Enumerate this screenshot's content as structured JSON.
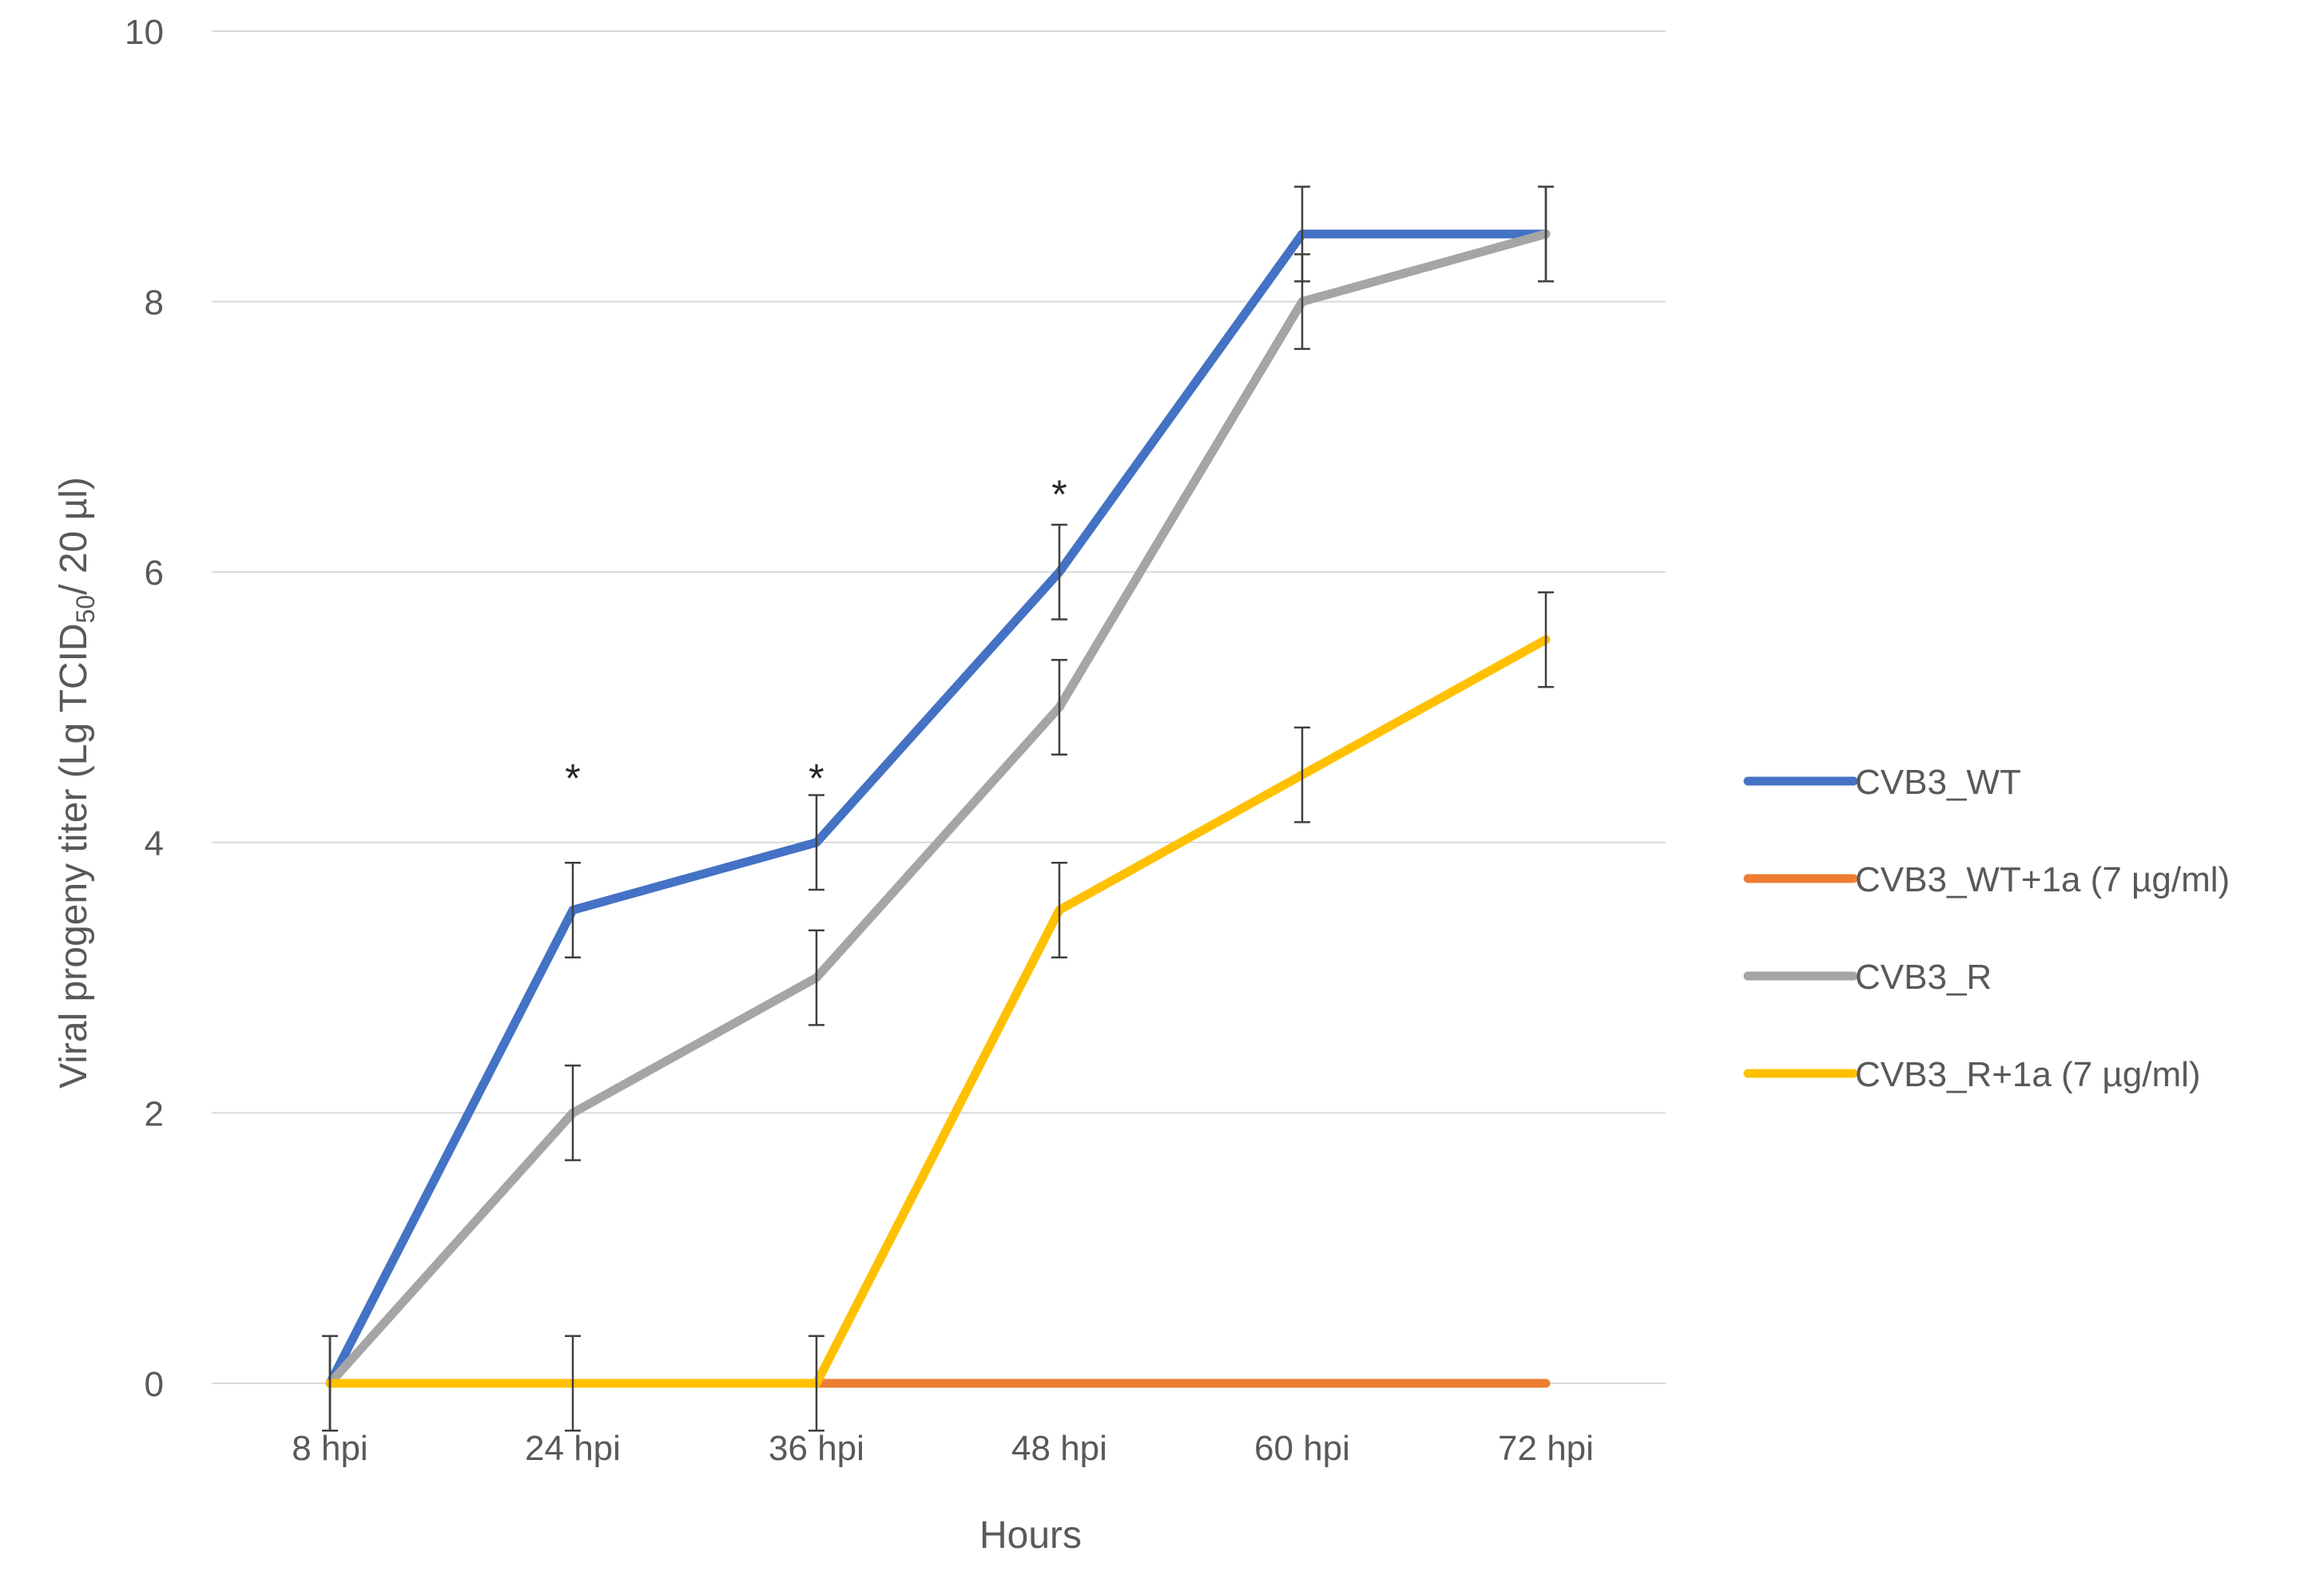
{
  "chart_data": {
    "type": "line",
    "categories": [
      "8 hpi",
      "24 hpi",
      "36 hpi",
      "48 hpi",
      "60 hpi",
      "72 hpi"
    ],
    "xlabel": "Hours",
    "ylabel_parts": {
      "before": "Viral progeny titer (Lg TCID",
      "subscript": "50",
      "after": "/ 20 µl)"
    },
    "ylim": [
      0,
      10
    ],
    "yticks": [
      0,
      2,
      4,
      6,
      8,
      10
    ],
    "grid": true,
    "legend_position": "right",
    "series": [
      {
        "name": "CVB3_WT",
        "color": "#4472C4",
        "values": [
          0,
          3.5,
          4,
          6,
          8.5,
          8.5
        ],
        "errors": [
          0.35,
          0.35,
          0.35,
          0.35,
          0.35,
          0.35
        ]
      },
      {
        "name": "CVB3_WT+1a (7 µg/ml)",
        "color": "#ED7D31",
        "values": [
          0,
          0,
          0,
          0,
          0,
          0
        ],
        "errors": [
          0,
          0,
          0,
          0,
          0,
          0
        ]
      },
      {
        "name": "CVB3_R",
        "color": "#A5A5A5",
        "values": [
          0,
          2,
          3,
          5,
          8,
          8.5
        ],
        "errors": [
          0.35,
          0.35,
          0.35,
          0.35,
          0.35,
          0.35
        ]
      },
      {
        "name": "CVB3_R+1a  (7 µg/ml)",
        "color": "#FFC000",
        "values": [
          0,
          0,
          0,
          3.5,
          4.5,
          5.5
        ],
        "errors": [
          0.35,
          0.35,
          0.35,
          0.35,
          0.35,
          0.35
        ]
      }
    ],
    "annotations": [
      {
        "text": "*",
        "category": "24 hpi",
        "y": 4.55
      },
      {
        "text": "*",
        "category": "36 hpi",
        "y": 4.55
      },
      {
        "text": "*",
        "category": "48 hpi",
        "y": 6.65
      }
    ]
  }
}
